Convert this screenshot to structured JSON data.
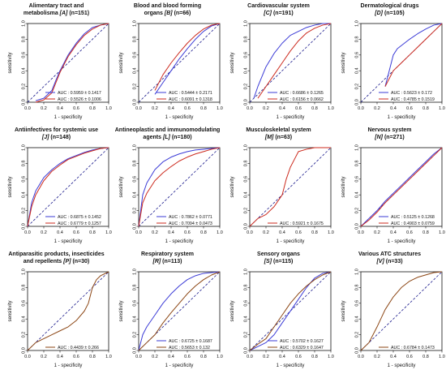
{
  "colors": {
    "series_1": "#3b3bd6",
    "series_2": "#cc2a1e",
    "series_brown": "#8b4513",
    "reference": "#1a1a8c"
  },
  "xlabel": "1 - specificity",
  "ylabel": "sensitivity",
  "chart_data": [
    {
      "type": "line",
      "title_lines": [
        "Alimentary tract and",
        "metabolisma"
      ],
      "title_code": "[A]",
      "title_n": "(n=151)",
      "xlim": [
        0,
        1
      ],
      "ylim": [
        0,
        1
      ],
      "xticks": [
        "0.0",
        "0.2",
        "0.4",
        "0.6",
        "0.8",
        "1.0"
      ],
      "yticks": [
        "0.0",
        "0.2",
        "0.4",
        "0.6",
        "0.8",
        "1.0"
      ],
      "legend_position": "bottom-right",
      "series": [
        {
          "color_key": "series_1",
          "legend": "AUC : 0.5959 ± 0.1417",
          "x": [
            0.1,
            0.2,
            0.3,
            0.35,
            0.4,
            0.5,
            0.6,
            0.7,
            0.8,
            0.9,
            1.0
          ],
          "y": [
            0.02,
            0.05,
            0.15,
            0.28,
            0.4,
            0.6,
            0.75,
            0.87,
            0.95,
            0.98,
            1.0
          ]
        },
        {
          "color_key": "series_2",
          "legend": "AUC : 0.5526 ± 0.1006",
          "x": [
            0.1,
            0.2,
            0.3,
            0.35,
            0.4,
            0.5,
            0.6,
            0.7,
            0.8,
            0.9,
            1.0
          ],
          "y": [
            0.0,
            0.03,
            0.12,
            0.25,
            0.38,
            0.58,
            0.73,
            0.85,
            0.93,
            0.98,
            1.0
          ]
        }
      ]
    },
    {
      "type": "line",
      "title_lines": [
        "Blood and blood forming",
        "organs"
      ],
      "title_code": "[B]",
      "title_n": "(n=66)",
      "xlim": [
        0,
        1
      ],
      "ylim": [
        0,
        1
      ],
      "xticks": [
        "0.0",
        "0.2",
        "0.4",
        "0.6",
        "0.8",
        "1.0"
      ],
      "yticks": [
        "0.0",
        "0.2",
        "0.4",
        "0.6",
        "0.8",
        "1.0"
      ],
      "legend_position": "bottom-right",
      "series": [
        {
          "color_key": "series_1",
          "legend": "AUC : 0.5444 ± 0.2171",
          "x": [
            0.2,
            0.3,
            0.4,
            0.5,
            0.6,
            0.7,
            0.8,
            0.9,
            1.0
          ],
          "y": [
            0.1,
            0.25,
            0.4,
            0.55,
            0.68,
            0.8,
            0.9,
            0.97,
            1.0
          ]
        },
        {
          "color_key": "series_2",
          "legend": "AUC : 0.6091 ± 0.1318",
          "x": [
            0.2,
            0.3,
            0.4,
            0.5,
            0.6,
            0.7,
            0.8,
            0.9,
            1.0
          ],
          "y": [
            0.15,
            0.35,
            0.5,
            0.63,
            0.75,
            0.85,
            0.93,
            0.98,
            1.0
          ]
        }
      ]
    },
    {
      "type": "line",
      "title_lines": [
        "Cardiovascular system"
      ],
      "title_code": "[C]",
      "title_n": "(n=191)",
      "xlim": [
        0,
        1
      ],
      "ylim": [
        0,
        1
      ],
      "xticks": [
        "0.0",
        "0.2",
        "0.4",
        "0.6",
        "0.8",
        "1.0"
      ],
      "yticks": [
        "0.0",
        "0.2",
        "0.4",
        "0.6",
        "0.8",
        "1.0"
      ],
      "legend_position": "bottom-right",
      "series": [
        {
          "color_key": "series_1",
          "legend": "AUC : 0.6686 ± 0.1265",
          "x": [
            0.05,
            0.1,
            0.2,
            0.3,
            0.4,
            0.5,
            0.6,
            0.7,
            0.8,
            0.9,
            1.0
          ],
          "y": [
            0.05,
            0.2,
            0.45,
            0.62,
            0.75,
            0.85,
            0.9,
            0.95,
            0.98,
            1.0,
            1.0
          ]
        },
        {
          "color_key": "series_2",
          "legend": "AUC : 0.6156 ± 0.0662",
          "x": [
            0.1,
            0.2,
            0.3,
            0.4,
            0.5,
            0.6,
            0.7,
            0.8,
            0.9,
            1.0
          ],
          "y": [
            0.05,
            0.2,
            0.35,
            0.5,
            0.65,
            0.78,
            0.88,
            0.94,
            0.98,
            1.0
          ]
        }
      ]
    },
    {
      "type": "line",
      "title_lines": [
        "Dermatological drugs"
      ],
      "title_code": "[D]",
      "title_n": "(n=105)",
      "xlim": [
        0,
        1
      ],
      "ylim": [
        0,
        1
      ],
      "xticks": [
        "0.0",
        "0.2",
        "0.4",
        "0.6",
        "0.8",
        "1.0"
      ],
      "yticks": [
        "0.0",
        "0.2",
        "0.4",
        "0.6",
        "0.8",
        "1.0"
      ],
      "legend_position": "bottom-right",
      "series": [
        {
          "color_key": "series_1",
          "legend": "AUC : 0.5623 ± 0.172",
          "x": [
            0.3,
            0.35,
            0.4,
            0.45,
            0.5,
            0.6,
            0.7,
            0.8,
            0.9,
            1.0
          ],
          "y": [
            0.2,
            0.4,
            0.6,
            0.68,
            0.72,
            0.8,
            0.87,
            0.93,
            0.98,
            1.0
          ]
        },
        {
          "color_key": "series_2",
          "legend": "AUC : 0.4785 ± 0.1519",
          "x": [
            0.3,
            0.4,
            0.5,
            0.6,
            0.7,
            0.8,
            0.9,
            1.0
          ],
          "y": [
            0.2,
            0.4,
            0.5,
            0.6,
            0.7,
            0.8,
            0.9,
            1.0
          ]
        }
      ]
    },
    {
      "type": "line",
      "title_lines": [
        "Antiinfectives for systemic use"
      ],
      "title_code": "[J]",
      "title_n": "(n=148)",
      "xlim": [
        0,
        1
      ],
      "ylim": [
        0,
        1
      ],
      "xticks": [
        "0.0",
        "0.2",
        "0.4",
        "0.6",
        "0.8",
        "1.0"
      ],
      "yticks": [
        "0.0",
        "0.2",
        "0.4",
        "0.6",
        "0.8",
        "1.0"
      ],
      "legend_position": "bottom-right",
      "series": [
        {
          "color_key": "series_1",
          "legend": "AUC : 0.6875 ± 0.1452",
          "x": [
            0.0,
            0.05,
            0.1,
            0.2,
            0.3,
            0.4,
            0.5,
            0.6,
            0.7,
            0.8,
            0.9,
            1.0
          ],
          "y": [
            0.0,
            0.3,
            0.45,
            0.62,
            0.72,
            0.8,
            0.86,
            0.9,
            0.94,
            0.97,
            0.99,
            1.0
          ]
        },
        {
          "color_key": "series_2",
          "legend": "AUC : 0.6779 ± 0.1257",
          "x": [
            0.0,
            0.05,
            0.1,
            0.2,
            0.3,
            0.4,
            0.5,
            0.6,
            0.7,
            0.8,
            0.9,
            1.0
          ],
          "y": [
            0.0,
            0.25,
            0.4,
            0.58,
            0.7,
            0.78,
            0.85,
            0.89,
            0.93,
            0.96,
            0.99,
            1.0
          ]
        }
      ]
    },
    {
      "type": "line",
      "title_lines": [
        "Antineoplastic and immunomodulating",
        "agents"
      ],
      "title_code": "[L]",
      "title_n": "(n=180)",
      "xlim": [
        0,
        1
      ],
      "ylim": [
        0,
        1
      ],
      "xticks": [
        "0.0",
        "0.2",
        "0.4",
        "0.6",
        "0.8",
        "1.0"
      ],
      "yticks": [
        "0.0",
        "0.2",
        "0.4",
        "0.6",
        "0.8",
        "1.0"
      ],
      "legend_position": "bottom-right",
      "series": [
        {
          "color_key": "series_1",
          "legend": "AUC : 0.7862 ± 0.0771",
          "x": [
            0.0,
            0.05,
            0.1,
            0.2,
            0.3,
            0.4,
            0.5,
            0.6,
            0.7,
            0.8,
            0.9,
            1.0
          ],
          "y": [
            0.0,
            0.4,
            0.55,
            0.72,
            0.82,
            0.88,
            0.92,
            0.95,
            0.97,
            0.98,
            0.99,
            1.0
          ]
        },
        {
          "color_key": "series_2",
          "legend": "AUC : 0.7094 ± 0.0473",
          "x": [
            0.0,
            0.05,
            0.1,
            0.2,
            0.3,
            0.4,
            0.5,
            0.6,
            0.7,
            0.8,
            0.9,
            1.0
          ],
          "y": [
            0.0,
            0.3,
            0.42,
            0.58,
            0.68,
            0.76,
            0.83,
            0.88,
            0.92,
            0.95,
            0.98,
            1.0
          ]
        }
      ]
    },
    {
      "type": "line",
      "title_lines": [
        "Musculoskeletal system"
      ],
      "title_code": "[M]",
      "title_n": "(n=63)",
      "xlim": [
        0,
        1
      ],
      "ylim": [
        0,
        1
      ],
      "xticks": [
        "0.0",
        "0.2",
        "0.4",
        "0.6",
        "0.8",
        "1.0"
      ],
      "yticks": [
        "0.0",
        "0.2",
        "0.4",
        "0.6",
        "0.8",
        "1.0"
      ],
      "legend_position": "bottom-right",
      "series": [
        {
          "color_key": "series_2",
          "legend": "AUC : 0.5921 ± 0.1675",
          "x": [
            0.0,
            0.1,
            0.2,
            0.3,
            0.4,
            0.45,
            0.5,
            0.55,
            0.6,
            0.7,
            0.8,
            0.9,
            1.0
          ],
          "y": [
            0.0,
            0.1,
            0.15,
            0.25,
            0.4,
            0.6,
            0.75,
            0.85,
            0.95,
            0.98,
            1.0,
            1.0,
            1.0
          ]
        }
      ]
    },
    {
      "type": "line",
      "title_lines": [
        "Nervous system"
      ],
      "title_code": "[N]",
      "title_n": "(n=271)",
      "xlim": [
        0,
        1
      ],
      "ylim": [
        0,
        1
      ],
      "xticks": [
        "0.0",
        "0.2",
        "0.4",
        "0.6",
        "0.8",
        "1.0"
      ],
      "yticks": [
        "0.0",
        "0.2",
        "0.4",
        "0.6",
        "0.8",
        "1.0"
      ],
      "legend_position": "bottom-right",
      "series": [
        {
          "color_key": "series_1",
          "legend": "AUC : 0.5125 ± 0.1268",
          "x": [
            0.0,
            0.1,
            0.2,
            0.3,
            0.4,
            0.5,
            0.6,
            0.7,
            0.8,
            0.9,
            1.0
          ],
          "y": [
            0.0,
            0.1,
            0.2,
            0.32,
            0.42,
            0.52,
            0.62,
            0.72,
            0.82,
            0.92,
            1.0
          ]
        },
        {
          "color_key": "series_2",
          "legend": "AUC : 0.4903 ± 0.0759",
          "x": [
            0.0,
            0.1,
            0.2,
            0.3,
            0.4,
            0.5,
            0.6,
            0.7,
            0.8,
            0.9,
            1.0
          ],
          "y": [
            0.0,
            0.08,
            0.18,
            0.3,
            0.4,
            0.5,
            0.6,
            0.7,
            0.8,
            0.9,
            1.0
          ]
        }
      ]
    },
    {
      "type": "line",
      "title_lines": [
        "Antiparasitic products, insecticides",
        "and repellents"
      ],
      "title_code": "[P]",
      "title_n": "(n=30)",
      "xlim": [
        0,
        1
      ],
      "ylim": [
        0,
        1
      ],
      "xticks": [
        "0.0",
        "0.2",
        "0.4",
        "0.6",
        "0.8",
        "1.0"
      ],
      "yticks": [
        "0.0",
        "0.2",
        "0.4",
        "0.6",
        "0.8",
        "1.0"
      ],
      "legend_position": "bottom-right",
      "series": [
        {
          "color_key": "series_brown",
          "legend": "AUC : 0.4439 ± 0.266",
          "x": [
            0.0,
            0.1,
            0.2,
            0.3,
            0.4,
            0.5,
            0.6,
            0.7,
            0.75,
            0.8,
            0.85,
            0.9,
            1.0
          ],
          "y": [
            0.0,
            0.1,
            0.15,
            0.2,
            0.25,
            0.3,
            0.38,
            0.5,
            0.6,
            0.8,
            0.9,
            0.95,
            1.0
          ]
        }
      ]
    },
    {
      "type": "line",
      "title_lines": [
        "Respiratory system"
      ],
      "title_code": "[R]",
      "title_n": "(n=113)",
      "xlim": [
        0,
        1
      ],
      "ylim": [
        0,
        1
      ],
      "xticks": [
        "0.0",
        "0.2",
        "0.4",
        "0.6",
        "0.8",
        "1.0"
      ],
      "yticks": [
        "0.0",
        "0.2",
        "0.4",
        "0.6",
        "0.8",
        "1.0"
      ],
      "legend_position": "bottom-right",
      "series": [
        {
          "color_key": "series_1",
          "legend": "AUC : 0.6725 ± 0.1687",
          "x": [
            0.0,
            0.05,
            0.1,
            0.2,
            0.3,
            0.4,
            0.5,
            0.6,
            0.7,
            0.8,
            0.9,
            1.0
          ],
          "y": [
            0.0,
            0.2,
            0.3,
            0.45,
            0.6,
            0.72,
            0.82,
            0.9,
            0.95,
            0.98,
            0.99,
            1.0
          ]
        },
        {
          "color_key": "series_brown",
          "legend": "AUC : 0.5653 ± 0.132",
          "x": [
            0.0,
            0.1,
            0.2,
            0.3,
            0.4,
            0.5,
            0.6,
            0.7,
            0.8,
            0.9,
            1.0
          ],
          "y": [
            0.0,
            0.1,
            0.2,
            0.35,
            0.48,
            0.6,
            0.72,
            0.82,
            0.9,
            0.96,
            1.0
          ]
        }
      ]
    },
    {
      "type": "line",
      "title_lines": [
        "Sensory organs"
      ],
      "title_code": "[S]",
      "title_n": "(n=115)",
      "xlim": [
        0,
        1
      ],
      "ylim": [
        0,
        1
      ],
      "xticks": [
        "0.0",
        "0.2",
        "0.4",
        "0.6",
        "0.8",
        "1.0"
      ],
      "yticks": [
        "0.0",
        "0.2",
        "0.4",
        "0.6",
        "0.8",
        "1.0"
      ],
      "legend_position": "bottom-right",
      "series": [
        {
          "color_key": "series_1",
          "legend": "AUC : 0.5702 ± 0.1627",
          "x": [
            0.0,
            0.1,
            0.2,
            0.3,
            0.4,
            0.5,
            0.6,
            0.7,
            0.8,
            0.9,
            1.0
          ],
          "y": [
            0.0,
            0.05,
            0.1,
            0.2,
            0.35,
            0.5,
            0.65,
            0.8,
            0.92,
            0.98,
            1.0
          ]
        },
        {
          "color_key": "series_brown",
          "legend": "AUC : 0.6329 ± 0.1647",
          "x": [
            0.0,
            0.1,
            0.2,
            0.3,
            0.4,
            0.5,
            0.6,
            0.7,
            0.8,
            0.9,
            1.0
          ],
          "y": [
            0.0,
            0.08,
            0.15,
            0.3,
            0.45,
            0.6,
            0.72,
            0.82,
            0.9,
            0.96,
            1.0
          ]
        }
      ]
    },
    {
      "type": "line",
      "title_lines": [
        "Various ATC structures"
      ],
      "title_code": "[V]",
      "title_n": "(n=33)",
      "xlim": [
        0,
        1
      ],
      "ylim": [
        0,
        1
      ],
      "xticks": [
        "0.0",
        "0.2",
        "0.4",
        "0.6",
        "0.8",
        "1.0"
      ],
      "yticks": [
        "0.0",
        "0.2",
        "0.4",
        "0.6",
        "0.8",
        "1.0"
      ],
      "legend_position": "bottom-right",
      "series": [
        {
          "color_key": "series_brown",
          "legend": "AUC : 0.6784 ± 0.1473",
          "x": [
            0.0,
            0.1,
            0.2,
            0.3,
            0.4,
            0.5,
            0.6,
            0.7,
            0.8,
            0.9,
            1.0
          ],
          "y": [
            0.0,
            0.1,
            0.3,
            0.52,
            0.68,
            0.8,
            0.88,
            0.93,
            0.96,
            0.99,
            1.0
          ]
        }
      ]
    }
  ]
}
